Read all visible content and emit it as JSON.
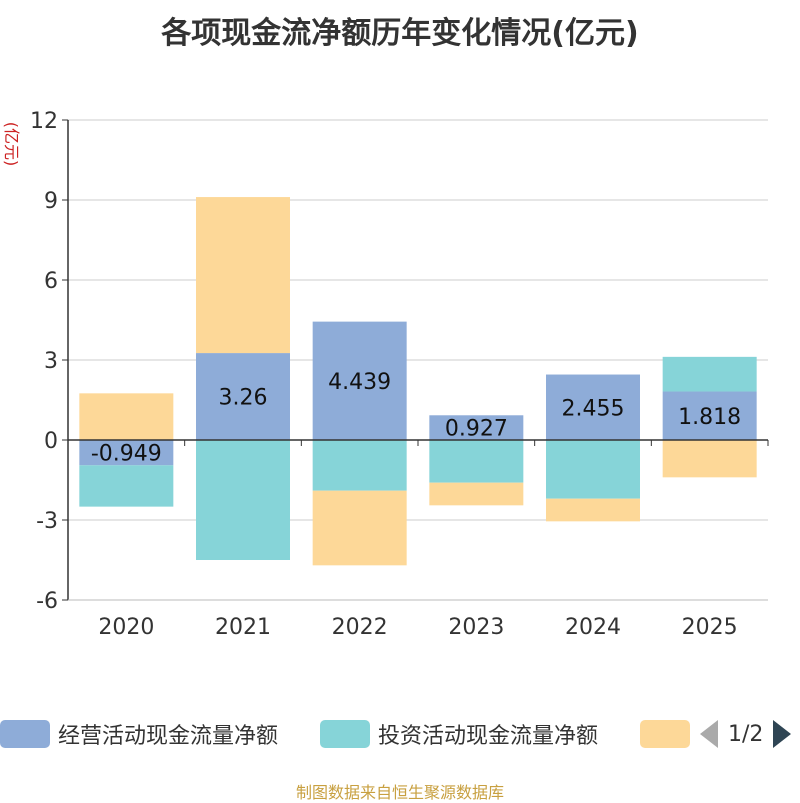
{
  "chart_data": {
    "type": "bar",
    "title": "各项现金流净额历年变化情况(亿元)",
    "ylabel": "(亿元)",
    "ylim": [
      -6,
      12
    ],
    "yticks": [
      -6,
      -3,
      0,
      3,
      6,
      9,
      12
    ],
    "categories": [
      "2020",
      "2021",
      "2022",
      "2023",
      "2024",
      "2025"
    ],
    "stacked": true,
    "series": [
      {
        "name": "经营活动现金流量净额",
        "color": "#8eacd8",
        "values": [
          -0.949,
          3.26,
          4.439,
          0.927,
          2.455,
          1.818
        ],
        "labels": [
          "-0.949",
          "3.26",
          "4.439",
          "0.927",
          "2.455",
          "1.818"
        ]
      },
      {
        "name": "投资活动现金流量净额",
        "color": "#86d4d8",
        "values": [
          -1.55,
          -4.5,
          -1.9,
          -1.6,
          -2.2,
          1.3
        ]
      },
      {
        "name": "",
        "color": "#fdd898",
        "values": [
          1.75,
          5.85,
          -2.8,
          -0.85,
          -0.85,
          -1.4
        ]
      }
    ]
  },
  "legend": {
    "items": [
      {
        "label": "经营活动现金流量净额",
        "color": "#8eacd8"
      },
      {
        "label": "投资活动现金流量净额",
        "color": "#86d4d8"
      },
      {
        "label": "",
        "color": "#fdd898"
      }
    ],
    "page_text": "1/2"
  },
  "footer": "制图数据来自恒生聚源数据库"
}
